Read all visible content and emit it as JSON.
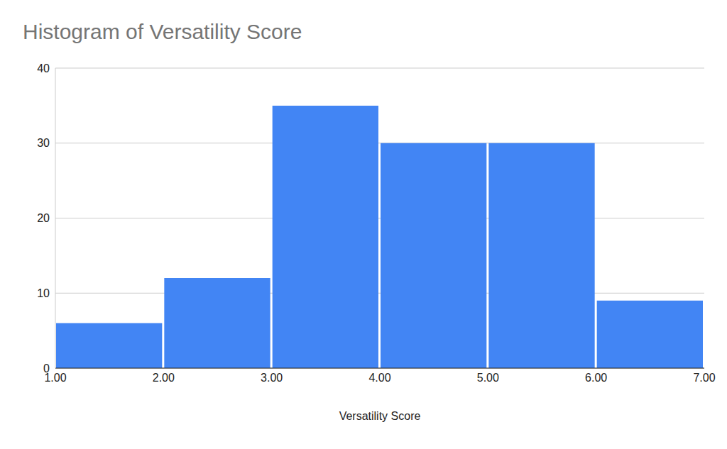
{
  "chart_data": {
    "type": "histogram",
    "title": "Histogram of Versatility Score",
    "x_label": "Versatility Score",
    "bins": [
      1,
      2,
      3,
      4,
      5,
      6,
      7
    ],
    "values": [
      6,
      12,
      35,
      30,
      30,
      9
    ],
    "color": "#4285f4",
    "xlim": [
      1,
      7
    ],
    "xticks": [
      {
        "value": 1,
        "label": "1.00"
      },
      {
        "value": 2,
        "label": "2.00"
      },
      {
        "value": 3,
        "label": "3.00"
      },
      {
        "value": 4,
        "label": "4.00"
      },
      {
        "value": 5,
        "label": "5.00"
      },
      {
        "value": 6,
        "label": "6.00"
      },
      {
        "value": 7,
        "label": "7.00"
      }
    ],
    "ylim": [
      0,
      40
    ],
    "yticks": [
      0,
      10,
      20,
      30,
      40
    ],
    "grid": true
  }
}
